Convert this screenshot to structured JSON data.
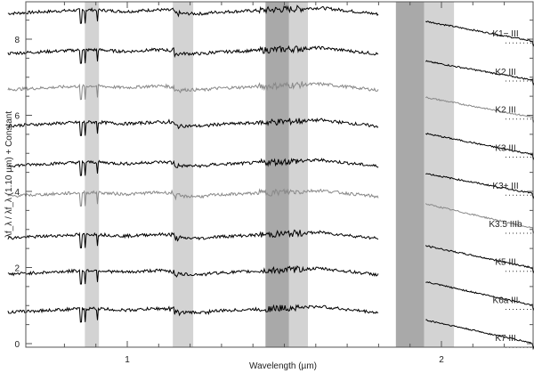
{
  "chart_data": {
    "type": "line",
    "title": "",
    "xlabel": "Wavelength (µm)",
    "ylabel": "λf_λ / λf_λ (1.10 µm) + Constant",
    "xlim": [
      0.59,
      2.55
    ],
    "ylim": [
      -0.1,
      9.0
    ],
    "x_ticks_major": [
      1,
      2
    ],
    "x_ticks_minor": [
      0.8,
      0.9,
      1.1,
      1.2,
      1.3,
      1.4,
      1.5,
      1.6,
      1.7,
      1.8,
      1.9,
      2.1,
      2.2,
      2.3,
      2.4,
      2.5
    ],
    "y_ticks_major": [
      0,
      2,
      4,
      6,
      8
    ],
    "y_ticks_minor": [
      0.5,
      1,
      1.5,
      2.5,
      3,
      3.5,
      4.5,
      5,
      5.5,
      6.5,
      7,
      7.5,
      8.5
    ],
    "grid": false,
    "shaded_bands": [
      {
        "x0": 0.865,
        "x1": 0.91,
        "shade": "light"
      },
      {
        "x0": 1.145,
        "x1": 1.21,
        "shade": "light"
      },
      {
        "x0": 1.44,
        "x1": 1.515,
        "shade": "dark"
      },
      {
        "x0": 1.515,
        "x1": 1.575,
        "shade": "light"
      },
      {
        "x0": 1.855,
        "x1": 1.945,
        "shade": "dark"
      },
      {
        "x0": 1.945,
        "x1": 2.04,
        "shade": "light"
      }
    ],
    "series": [
      {
        "name": "K1− III",
        "offset": 7.9,
        "color": "#000000",
        "level_at_1.10um": 8.75,
        "level_at_2.5um": 7.55
      },
      {
        "name": "K2 III",
        "offset": 6.9,
        "color": "#000000",
        "level_at_1.10um": 7.7,
        "level_at_2.5um": 6.55
      },
      {
        "name": "K2 III",
        "offset": 5.9,
        "color": "#888888",
        "level_at_1.10um": 6.75,
        "level_at_2.5um": 5.55
      },
      {
        "name": "K3 III",
        "offset": 4.9,
        "color": "#000000",
        "level_at_1.10um": 5.8,
        "level_at_2.5um": 4.55
      },
      {
        "name": "K3+ III",
        "offset": 3.9,
        "color": "#000000",
        "level_at_1.10um": 4.75,
        "level_at_2.5um": 3.55
      },
      {
        "name": "K3.5 IIIb",
        "offset": 2.9,
        "color": "#888888",
        "level_at_1.10um": 3.95,
        "level_at_2.5um": 2.55
      },
      {
        "name": "K5 III",
        "offset": 1.9,
        "color": "#000000",
        "level_at_1.10um": 2.85,
        "level_at_2.5um": 1.55
      },
      {
        "name": "K6a III",
        "offset": 0.9,
        "color": "#000000",
        "level_at_1.10um": 1.9,
        "level_at_2.5um": 0.55
      },
      {
        "name": "K7 III",
        "offset": 0.0,
        "color": "#000000",
        "level_at_1.10um": 0.9,
        "level_at_2.5um": -0.45
      }
    ],
    "annotations": [
      "dotted zero-level reference lines at right edge for each spectrum"
    ]
  },
  "colors": {
    "band_light": "#d3d3d3",
    "band_dark": "#a9a9a9",
    "axis": "#555555",
    "spectrum_black": "#000000",
    "spectrum_gray": "#8c8c8c"
  }
}
